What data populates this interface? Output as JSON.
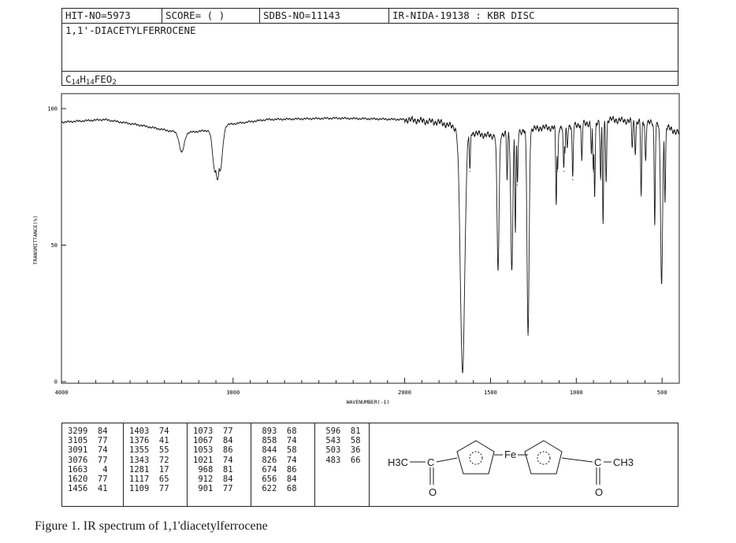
{
  "header": {
    "hit_no": "HIT-NO=5973",
    "score": "SCORE=  (    )",
    "sdbs_no": "SDBS-NO=11143",
    "ir_nida": "IR-NIDA-19138 : KBR DISC",
    "compound_name": "1,1'-DIACETYLFERROCENE",
    "formula": {
      "c": "C",
      "c_n": "14",
      "h": "H",
      "h_n": "14",
      "feo": "FEO",
      "o_n": "2"
    }
  },
  "chart_data": {
    "type": "line",
    "title": "",
    "xlabel": "WAVENUMBER(-1)",
    "ylabel": "TRANSMITTANCE(%)",
    "xlim": [
      4000,
      400
    ],
    "ylim": [
      0,
      100
    ],
    "x_ticks": [
      4000,
      3000,
      2000,
      1500,
      1000,
      500
    ],
    "y_ticks": [
      0,
      50,
      100
    ],
    "baseline_points": [
      [
        4000,
        95
      ],
      [
        3750,
        96
      ],
      [
        3550,
        94
      ],
      [
        3300,
        91
      ],
      [
        3150,
        92
      ],
      [
        3050,
        94
      ],
      [
        2800,
        96
      ],
      [
        2400,
        96.5
      ],
      [
        2000,
        96
      ],
      [
        1800,
        95
      ],
      [
        1700,
        93
      ],
      [
        1600,
        91
      ],
      [
        1500,
        90
      ],
      [
        1400,
        91
      ],
      [
        1300,
        92
      ],
      [
        1200,
        93
      ],
      [
        1100,
        93
      ],
      [
        1000,
        94
      ],
      [
        900,
        95
      ],
      [
        800,
        96
      ],
      [
        700,
        95.5
      ],
      [
        600,
        95
      ],
      [
        500,
        94
      ],
      [
        400,
        91
      ]
    ],
    "peaks": [
      {
        "x": 3299,
        "y": 84
      },
      {
        "x": 3105,
        "y": 77
      },
      {
        "x": 3091,
        "y": 74
      },
      {
        "x": 3076,
        "y": 77
      },
      {
        "x": 1663,
        "y": 4
      },
      {
        "x": 1620,
        "y": 77
      },
      {
        "x": 1456,
        "y": 41
      },
      {
        "x": 1403,
        "y": 74
      },
      {
        "x": 1376,
        "y": 41
      },
      {
        "x": 1355,
        "y": 55
      },
      {
        "x": 1343,
        "y": 72
      },
      {
        "x": 1281,
        "y": 17
      },
      {
        "x": 1117,
        "y": 65
      },
      {
        "x": 1109,
        "y": 77
      },
      {
        "x": 1073,
        "y": 77
      },
      {
        "x": 1067,
        "y": 84
      },
      {
        "x": 1053,
        "y": 86
      },
      {
        "x": 1021,
        "y": 74
      },
      {
        "x": 968,
        "y": 81
      },
      {
        "x": 912,
        "y": 84
      },
      {
        "x": 901,
        "y": 77
      },
      {
        "x": 893,
        "y": 68
      },
      {
        "x": 858,
        "y": 74
      },
      {
        "x": 844,
        "y": 58
      },
      {
        "x": 826,
        "y": 74
      },
      {
        "x": 674,
        "y": 86
      },
      {
        "x": 656,
        "y": 84
      },
      {
        "x": 622,
        "y": 68
      },
      {
        "x": 596,
        "y": 81
      },
      {
        "x": 543,
        "y": 58
      },
      {
        "x": 503,
        "y": 36
      },
      {
        "x": 483,
        "y": 66
      }
    ]
  },
  "peak_table": [
    [
      "3299  84",
      "3105  77",
      "3091  74",
      "3076  77",
      "1663   4",
      "1620  77",
      "1456  41"
    ],
    [
      "1403  74",
      "1376  41",
      "1355  55",
      "1343  72",
      "1281  17",
      "1117  65",
      "1109  77"
    ],
    [
      "1073  77",
      "1067  84",
      "1053  86",
      "1021  74",
      " 968  81",
      " 912  84",
      " 901  77"
    ],
    [
      " 893  68",
      " 858  74",
      " 844  58",
      " 826  74",
      " 674  86",
      " 656  84",
      " 622  68"
    ],
    [
      " 596  81",
      " 543  58",
      " 503  36",
      " 483  66"
    ]
  ],
  "structure": {
    "left_methyl": "H3C",
    "left_carbonyl_c": "C",
    "left_oxygen": "O",
    "iron": "Fe",
    "right_carbonyl_c": "C",
    "right_methyl": "CH3",
    "right_oxygen": "O"
  },
  "caption": "Figure 1. IR spectrum of 1,1'diacetylferrocene",
  "colors": {
    "ink": "#1a1a1a",
    "background": "#ffffff"
  }
}
